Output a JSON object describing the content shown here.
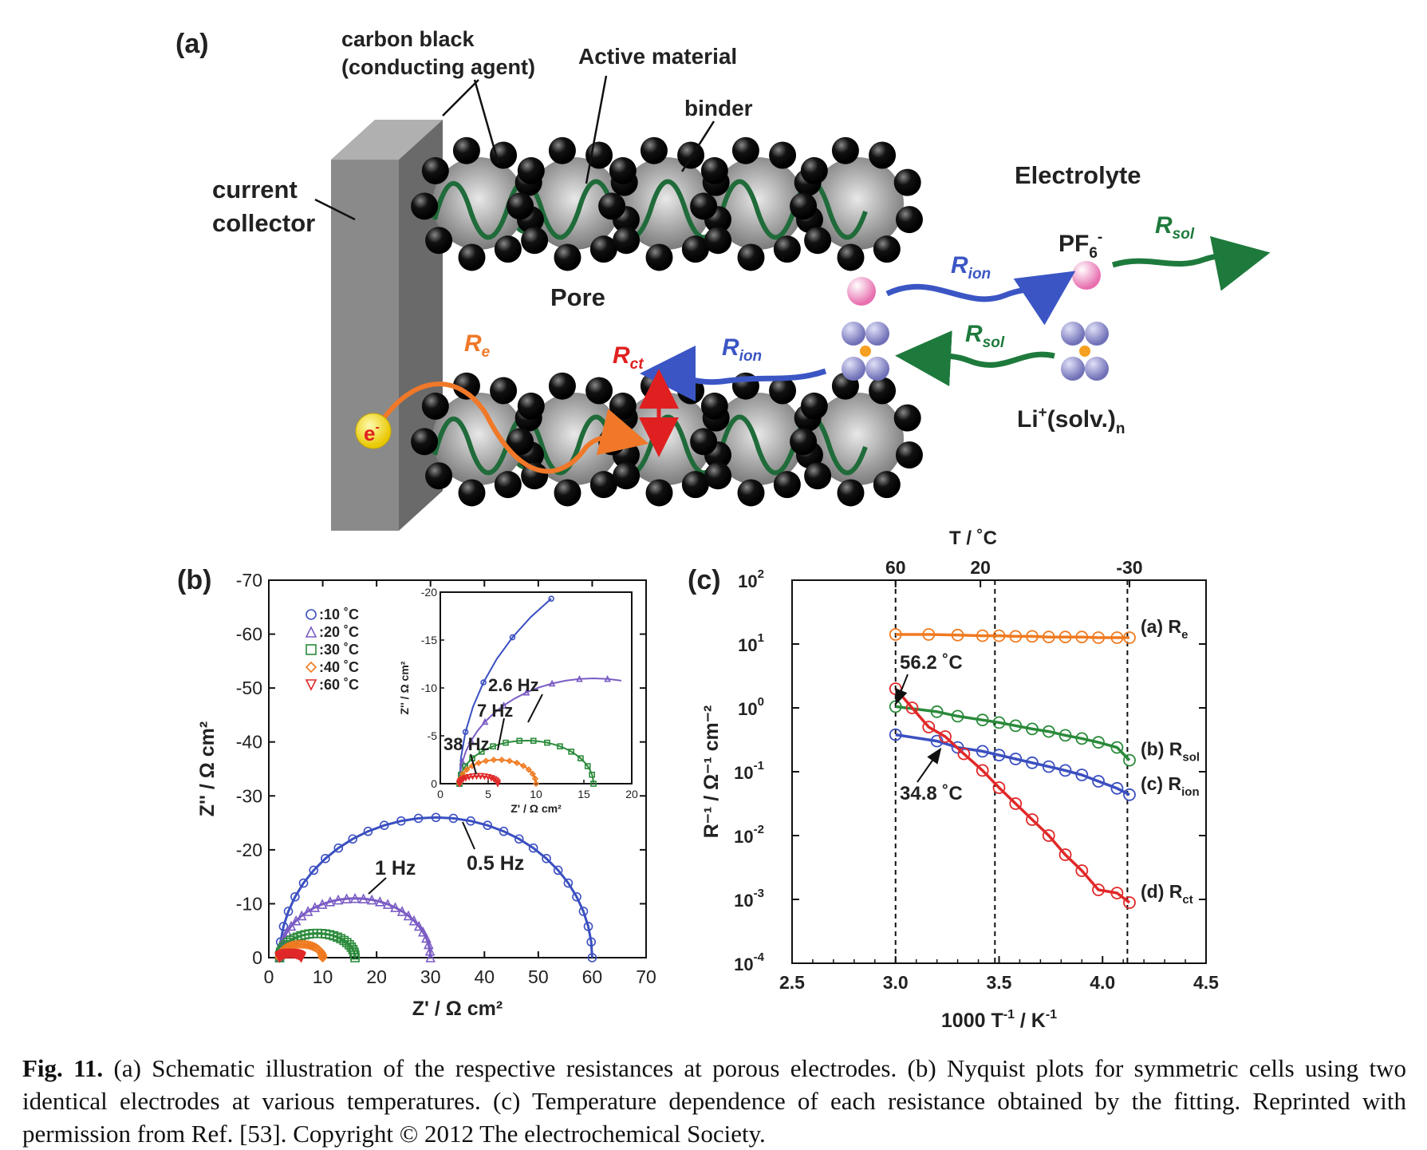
{
  "panel_a": {
    "panel_label": "(a)",
    "labels": {
      "carbon_black_1": "carbon black",
      "carbon_black_2": "(conducting agent)",
      "active_material": "Active material",
      "binder": "binder",
      "current_1": "current",
      "current_2": "collector",
      "electrolyte": "Electrolyte",
      "pore": "Pore",
      "pf6": "PF",
      "pf6_sub": "6",
      "pf6_sup": "-",
      "li_main": "Li",
      "li_sup": "+",
      "li_rest": "(solv.)",
      "li_sub": "n",
      "electron": "e",
      "electron_sup": "-",
      "r": "R",
      "sub_e": "e",
      "sub_ct": "ct",
      "sub_ion": "ion",
      "sub_sol": "sol"
    },
    "colors": {
      "re": "#f07828",
      "rct": "#e02020",
      "rion": "#3b56c4",
      "rsol": "#1e7a3c",
      "binder": "#1f6b3a",
      "collector": "#888888",
      "electron": "#f2df1c",
      "pf6": "#f0a0c8",
      "li_ion": "#9090c8"
    }
  },
  "panel_b": {
    "panel_label": "(b)",
    "annotations": {
      "hz_1": "1 Hz",
      "hz_05": "0.5 Hz",
      "hz_26": "2.6 Hz",
      "hz_7": "7 Hz",
      "hz_38": "38 Hz"
    }
  },
  "panel_c": {
    "panel_label": "(c)",
    "annotations": {
      "t562": "56.2 ˚C",
      "t348": "34.8 ˚C"
    }
  },
  "chart_data": [
    {
      "type": "scatter",
      "id": "b-main",
      "xlabel": "Z' / Ω cm²",
      "ylabel": "Z'' / Ω cm²",
      "xlim": [
        0,
        70
      ],
      "ylim": [
        0,
        -70
      ],
      "xticks": [
        "0",
        "10",
        "20",
        "30",
        "40",
        "50",
        "60",
        "70"
      ],
      "yticks": [
        "0",
        "-10",
        "-20",
        "-30",
        "-40",
        "-50",
        "-60",
        "-70"
      ],
      "legend_position": "top-left",
      "series": [
        {
          "name": "10 ˚C",
          "marker": "circle",
          "color": "#3a4fc0",
          "x_start": 2,
          "x_end": 60,
          "peak_x": 35,
          "peak_y": -26
        },
        {
          "name": "20 ˚C",
          "marker": "triangle",
          "color": "#7a5cc4",
          "x_start": 2,
          "x_end": 30,
          "peak_x": 19,
          "peak_y": -11
        },
        {
          "name": "30 ˚C",
          "marker": "square",
          "color": "#2a8a3a",
          "x_start": 2,
          "x_end": 16,
          "peak_x": 10,
          "peak_y": -4.5
        },
        {
          "name": "40 ˚C",
          "marker": "diamond",
          "color": "#f07a20",
          "x_start": 2,
          "x_end": 10,
          "peak_x": 8,
          "peak_y": -2.5
        },
        {
          "name": "60 ˚C",
          "marker": "triangle-down",
          "color": "#e02828",
          "x_start": 2,
          "x_end": 6,
          "peak_x": 3.5,
          "peak_y": -0.8
        }
      ]
    },
    {
      "type": "scatter",
      "id": "b-inset",
      "xlabel": "Z' / Ω cm²",
      "ylabel": "Z'' / Ω cm²",
      "xlim": [
        0,
        20
      ],
      "ylim": [
        0,
        -20
      ],
      "xticks": [
        "0",
        "5",
        "10",
        "15",
        "20"
      ],
      "yticks": [
        "0",
        "-5",
        "-10",
        "-15",
        "-20"
      ]
    },
    {
      "type": "line",
      "id": "c",
      "xlabel": "1000 T",
      "xlabel_sup1": "-1",
      "xlabel_unit": " / K",
      "xlabel_sup2": "-1",
      "ylabel": "R⁻¹ / Ω⁻¹ cm⁻²",
      "top_axis_label": "T / ˚C",
      "top_ticks": [
        "60",
        "20",
        "-30"
      ],
      "top_tick_x": [
        3.0,
        3.41,
        4.13
      ],
      "xlim": [
        2.5,
        4.5
      ],
      "ylim_log10": [
        -4,
        2
      ],
      "log_y": true,
      "xticks": [
        "2.5",
        "3.0",
        "3.5",
        "4.0",
        "4.5"
      ],
      "ytick_base": "10",
      "ytick_exponents": [
        "2",
        "1",
        "0",
        "-1",
        "-2",
        "-3",
        "-4"
      ],
      "series": [
        {
          "name": "(a) R",
          "sub": "e",
          "color": "#f07a20",
          "x": [
            3.0,
            3.16,
            3.3,
            3.42,
            3.5,
            3.58,
            3.66,
            3.74,
            3.82,
            3.9,
            3.98,
            4.07,
            4.13
          ],
          "log10_y": [
            1.15,
            1.15,
            1.14,
            1.13,
            1.13,
            1.12,
            1.12,
            1.11,
            1.11,
            1.11,
            1.1,
            1.1,
            1.1
          ]
        },
        {
          "name": "(b) R",
          "sub": "sol",
          "color": "#2a8a3a",
          "x": [
            3.0,
            3.2,
            3.3,
            3.42,
            3.5,
            3.58,
            3.66,
            3.74,
            3.82,
            3.9,
            3.98,
            4.07,
            4.13
          ],
          "log10_y": [
            0.02,
            -0.06,
            -0.13,
            -0.19,
            -0.23,
            -0.28,
            -0.33,
            -0.37,
            -0.43,
            -0.48,
            -0.54,
            -0.62,
            -0.82
          ]
        },
        {
          "name": "(c) R",
          "sub": "ion",
          "color": "#3a4fc0",
          "x": [
            3.0,
            3.2,
            3.3,
            3.42,
            3.5,
            3.58,
            3.66,
            3.74,
            3.82,
            3.9,
            3.98,
            4.07,
            4.13
          ],
          "log10_y": [
            -0.42,
            -0.52,
            -0.62,
            -0.68,
            -0.74,
            -0.8,
            -0.86,
            -0.92,
            -0.98,
            -1.05,
            -1.15,
            -1.26,
            -1.36
          ]
        },
        {
          "name": "(d) R",
          "sub": "ct",
          "color": "#e02828",
          "x": [
            3.0,
            3.08,
            3.16,
            3.24,
            3.33,
            3.42,
            3.5,
            3.58,
            3.66,
            3.74,
            3.82,
            3.9,
            3.98,
            4.07,
            4.13
          ],
          "log10_y": [
            0.3,
            0.0,
            -0.3,
            -0.45,
            -0.72,
            -0.98,
            -1.25,
            -1.5,
            -1.75,
            -2.0,
            -2.3,
            -2.55,
            -2.85,
            -2.9,
            -3.05
          ]
        }
      ],
      "vlines_x": [
        3.0,
        3.48,
        4.12
      ]
    }
  ],
  "caption": {
    "fig_label": "Fig. 11.",
    "text": " (a) Schematic illustration of the respective resistances at porous electrodes. (b) Nyquist plots for symmetric cells using two identical electrodes at various temperatures. (c) Temperature dependence of each resistance obtained by the fitting. Reprinted with permission from Ref. [53]. Copyright © 2012 The electrochemical Society."
  }
}
